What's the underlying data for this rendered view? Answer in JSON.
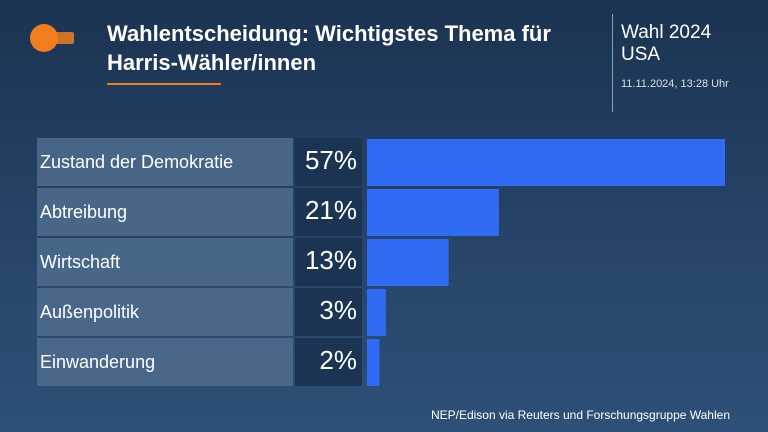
{
  "chart_data": {
    "type": "bar",
    "title": "Wahlentscheidung: Wichtigstes Thema für Harris-Wähler/innen",
    "kicker": [
      "Wahl 2024",
      "USA"
    ],
    "timestamp": "11.11.2024, 13:28 Uhr",
    "source": "NEP/Edison via Reuters und Forschungsgruppe Wahlen",
    "categories": [
      "Zustand der Demokratie",
      "Abtreibung",
      "Wirtschaft",
      "Außenpolitik",
      "Einwanderung"
    ],
    "values": [
      57,
      21,
      13,
      3,
      2
    ],
    "value_labels": [
      "57%",
      "21%",
      "13%",
      "3%",
      "2%"
    ],
    "color": "#2f6bf3"
  }
}
